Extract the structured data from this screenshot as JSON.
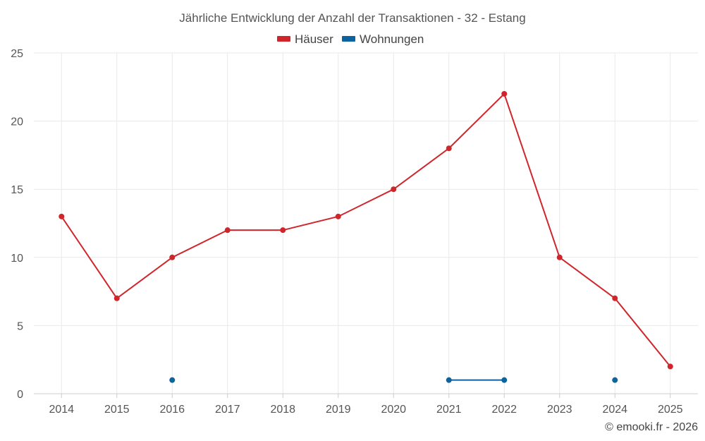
{
  "chart_data": {
    "type": "line",
    "title": "Jährliche Entwicklung der Anzahl der Transaktionen - 32 - Estang",
    "categories": [
      "2014",
      "2015",
      "2016",
      "2017",
      "2018",
      "2019",
      "2020",
      "2021",
      "2022",
      "2023",
      "2024",
      "2025"
    ],
    "ylim": [
      0,
      25
    ],
    "yticks": [
      0,
      5,
      10,
      15,
      20,
      25
    ],
    "grid": true,
    "legend_position": "top-center",
    "series": [
      {
        "name": "Häuser",
        "color": "#d0262b",
        "values": [
          13,
          7,
          10,
          12,
          12,
          13,
          15,
          18,
          22,
          10,
          7,
          2
        ]
      },
      {
        "name": "Wohnungen",
        "color": "#0b63a0",
        "values": [
          null,
          null,
          1,
          null,
          null,
          null,
          null,
          1,
          1,
          null,
          1,
          null
        ]
      }
    ],
    "credit": "© emooki.fr - 2026"
  }
}
